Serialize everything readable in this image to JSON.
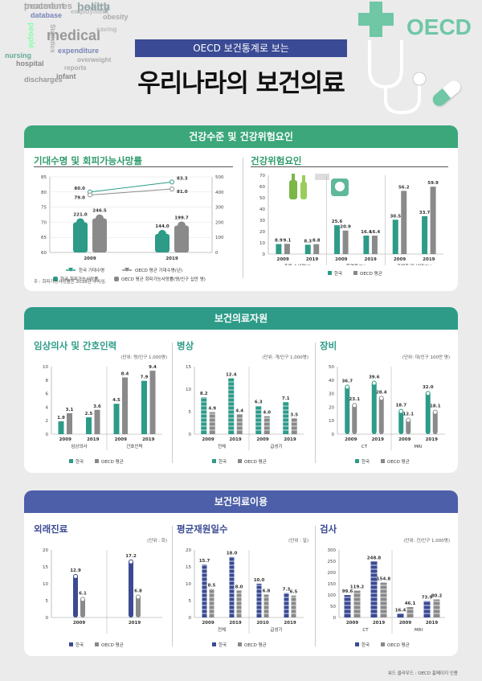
{
  "header": {
    "subtitle": "OECD 보건통계로 보는",
    "title": "우리나라의 보건의료",
    "logo_text": "OECD",
    "word_cloud": [
      "treatment",
      "health",
      "database",
      "employment",
      "obesity",
      "people",
      "medical",
      "saving",
      "Statistics",
      "expenditure",
      "overweight",
      "nursing",
      "hospital",
      "reports",
      "infant",
      "discharges",
      "procedures",
      "policy"
    ]
  },
  "colors": {
    "korea": "#2d9b88",
    "oecd": "#8a8a8a",
    "green_head": "#3ba77a",
    "teal_head": "#2d9b88",
    "blue_head": "#4c5fa8"
  },
  "legend": {
    "korea": "한국",
    "oecd": "OECD 평균"
  },
  "section1": {
    "title": "건강수준 및 건강위험요인",
    "life": {
      "title": "기대수명 및 회피가능사망률",
      "legend": {
        "kr_life": "한국 기대수명",
        "oecd_life": "OECD 평균 기대수명(년)",
        "kr_avoid": "한국 회피가능사망률",
        "oecd_avoid": "OECD 평균 회피가능사망률(명/인구 십만 명)"
      },
      "note": "주 : 회피가능사망률은 2018년 수치임."
    },
    "risk": {
      "title": "건강위험요인",
      "group_labels": [
        "주류 소비량(ℓ)",
        "흡연율(%)",
        "과체중 및 비만(%)"
      ]
    }
  },
  "section2": {
    "title": "보건의료자원",
    "doctors": {
      "title": "임상의사 및 간호인력",
      "unit": "(단위: 명/인구 1,000명)",
      "group_labels": [
        "임상의사",
        "간호인력"
      ]
    },
    "beds": {
      "title": "병상",
      "unit": "(단위: 개/인구 1,000명)",
      "group_labels": [
        "전체",
        "급성기"
      ]
    },
    "equip": {
      "title": "장비",
      "unit": "(단위: 대/인구 100만 명)",
      "group_labels": [
        "CT",
        "MRI"
      ]
    }
  },
  "section3": {
    "title": "보건의료이용",
    "visits": {
      "title": "외래진료",
      "unit": "(단위 : 회)"
    },
    "stay": {
      "title": "평균재원일수",
      "unit": "(단위 : 일)",
      "group_labels": [
        "전체",
        "급성기"
      ]
    },
    "exam": {
      "title": "검사",
      "unit": "(단위: 건/인구 1,000명)",
      "group_labels": [
        "CT",
        "MRI"
      ]
    }
  },
  "footer": "워드 클라우드 : OECD 홈페이지 인용",
  "chart_data": [
    {
      "id": "life",
      "type": "bar",
      "categories": [
        "2009",
        "2019"
      ],
      "series": [
        {
          "name": "한국 기대수명",
          "kind": "line",
          "axis": "left",
          "values": [
            80.0,
            83.3
          ]
        },
        {
          "name": "OECD 평균 기대수명(년)",
          "kind": "line",
          "axis": "left",
          "values": [
            79.0,
            81.0
          ]
        },
        {
          "name": "한국 회피가능사망률",
          "kind": "bar",
          "axis": "right",
          "values": [
            221.0,
            144.0
          ]
        },
        {
          "name": "OECD 평균 회피가능사망률(명/인구 십만 명)",
          "kind": "bar",
          "axis": "right",
          "values": [
            246.5,
            199.7
          ]
        }
      ],
      "ylim": [
        60,
        85
      ],
      "y2lim": [
        0,
        500
      ]
    },
    {
      "id": "risk",
      "type": "bar",
      "groups": [
        {
          "label": "주류 소비량(ℓ)",
          "categories": [
            "2009",
            "2019"
          ],
          "korea": [
            8.9,
            8.3
          ],
          "oecd": [
            9.1,
            8.8
          ]
        },
        {
          "label": "흡연율(%)",
          "categories": [
            "2009",
            "2019"
          ],
          "korea": [
            25.6,
            16.4
          ],
          "oecd": [
            20.9,
            16.4
          ]
        },
        {
          "label": "과체중 및 비만(%)",
          "categories": [
            "2009",
            "2019"
          ],
          "korea": [
            30.5,
            33.7
          ],
          "oecd": [
            56.2,
            59.9
          ]
        }
      ],
      "ylim": [
        0,
        70
      ]
    },
    {
      "id": "doctors",
      "type": "bar",
      "groups": [
        {
          "label": "임상의사",
          "categories": [
            "2009",
            "2019"
          ],
          "korea": [
            1.9,
            2.5
          ],
          "oecd": [
            3.1,
            3.6
          ]
        },
        {
          "label": "간호인력",
          "categories": [
            "2009",
            "2019"
          ],
          "korea": [
            4.5,
            7.9
          ],
          "oecd": [
            8.4,
            9.4
          ]
        }
      ],
      "ylim": [
        0,
        10
      ]
    },
    {
      "id": "beds",
      "type": "bar",
      "groups": [
        {
          "label": "전체",
          "categories": [
            "2009",
            "2019"
          ],
          "korea": [
            8.2,
            12.4
          ],
          "oecd": [
            4.9,
            4.4
          ]
        },
        {
          "label": "급성기",
          "categories": [
            "2009",
            "2019"
          ],
          "korea": [
            6.3,
            7.1
          ],
          "oecd": [
            4.0,
            3.5
          ]
        }
      ],
      "ylim": [
        0,
        15
      ]
    },
    {
      "id": "equip",
      "type": "bar",
      "groups": [
        {
          "label": "CT",
          "categories": [
            "2009",
            "2019"
          ],
          "korea": [
            36.7,
            39.6
          ],
          "oecd": [
            23.1,
            28.4
          ]
        },
        {
          "label": "MRI",
          "categories": [
            "2009",
            "2019"
          ],
          "korea": [
            18.7,
            32.0
          ],
          "oecd": [
            12.1,
            18.1
          ]
        }
      ],
      "ylim": [
        0,
        50
      ]
    },
    {
      "id": "visits",
      "type": "bar",
      "groups": [
        {
          "label": "",
          "categories": [
            "2009"
          ],
          "korea": [
            12.9
          ],
          "oecd": [
            6.1
          ]
        },
        {
          "label": "",
          "categories": [
            "2019"
          ],
          "korea": [
            17.2
          ],
          "oecd": [
            6.8
          ]
        }
      ],
      "ylim": [
        0,
        20
      ]
    },
    {
      "id": "stay",
      "type": "bar",
      "groups": [
        {
          "label": "전체",
          "categories": [
            "2009",
            "2019"
          ],
          "korea": [
            15.7,
            18.0
          ],
          "oecd": [
            8.5,
            8.0
          ]
        },
        {
          "label": "급성기",
          "categories": [
            "2010",
            "2019"
          ],
          "korea": [
            10.0,
            7.3
          ],
          "oecd": [
            6.8,
            6.5
          ]
        }
      ],
      "ylim": [
        0,
        20
      ]
    },
    {
      "id": "exam",
      "type": "bar",
      "groups": [
        {
          "label": "CT",
          "categories": [
            "2009",
            "2019"
          ],
          "korea": [
            99.6,
            248.8
          ],
          "oecd": [
            119.2,
            154.8
          ]
        },
        {
          "label": "MRI",
          "categories": [
            "2009",
            "2019"
          ],
          "korea": [
            16.4,
            73.9
          ],
          "oecd": [
            46.1,
            80.2
          ]
        }
      ],
      "ylim": [
        0,
        300
      ]
    }
  ]
}
